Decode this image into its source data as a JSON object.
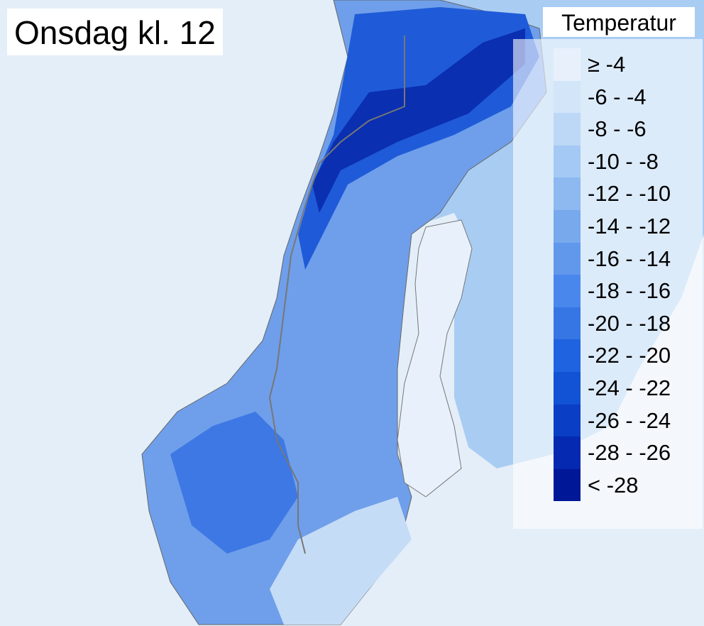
{
  "title": "Onsdag kl. 12",
  "legend": {
    "title": "Temperatur",
    "entries": [
      {
        "label": "≥ -4",
        "color": "#e8f1fb"
      },
      {
        "label": "-6 - -4",
        "color": "#d3e5f8"
      },
      {
        "label": "-8 - -6",
        "color": "#bcd8f6"
      },
      {
        "label": "-10 - -8",
        "color": "#a4c9f4"
      },
      {
        "label": "-12 - -10",
        "color": "#8db9f0"
      },
      {
        "label": "-14 - -12",
        "color": "#77a9ec"
      },
      {
        "label": "-16 - -14",
        "color": "#6198ec"
      },
      {
        "label": "-18 - -16",
        "color": "#4a87ec"
      },
      {
        "label": "-20 - -18",
        "color": "#3676e4"
      },
      {
        "label": "-22 - -20",
        "color": "#1f63e0"
      },
      {
        "label": "-24 - -22",
        "color": "#1252d4"
      },
      {
        "label": "-26 - -24",
        "color": "#0a3ec4"
      },
      {
        "label": "-28 - -26",
        "color": "#0529b0"
      },
      {
        "label": "< -28",
        "color": "#001898"
      }
    ]
  }
}
